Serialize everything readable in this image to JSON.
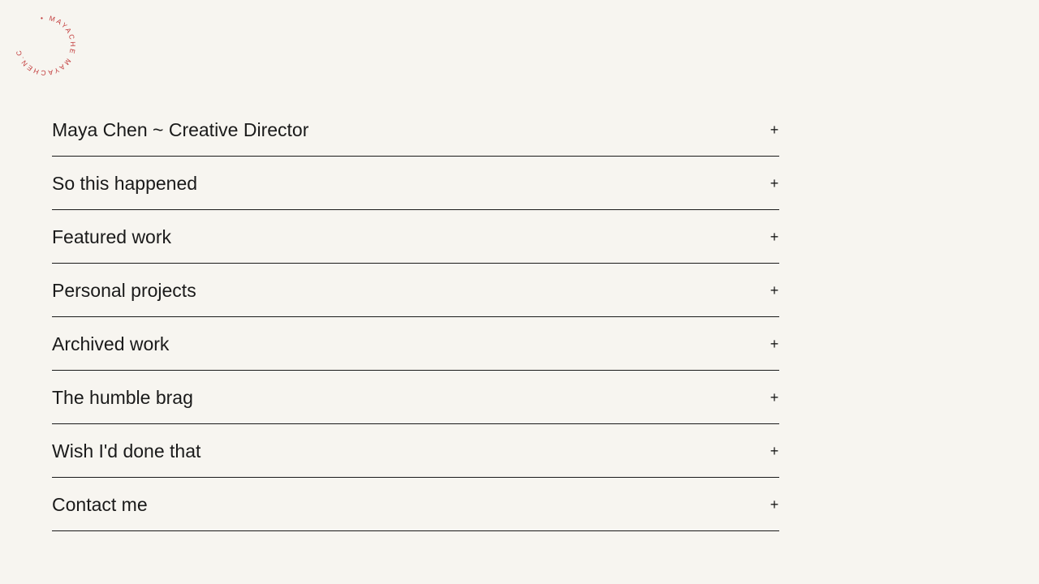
{
  "logo": {
    "text": "• MAYACHE MAYACHEN.COM ",
    "color": "#c23a3a"
  },
  "accordion": {
    "items": [
      {
        "label": "Maya Chen ~ Creative Director",
        "icon": "+"
      },
      {
        "label": "So this happened",
        "icon": "+"
      },
      {
        "label": "Featured work",
        "icon": "+"
      },
      {
        "label": "Personal projects",
        "icon": "+"
      },
      {
        "label": "Archived work",
        "icon": "+"
      },
      {
        "label": "The humble brag",
        "icon": "+"
      },
      {
        "label": "Wish I'd done that",
        "icon": "+"
      },
      {
        "label": "Contact me",
        "icon": "+"
      }
    ]
  }
}
